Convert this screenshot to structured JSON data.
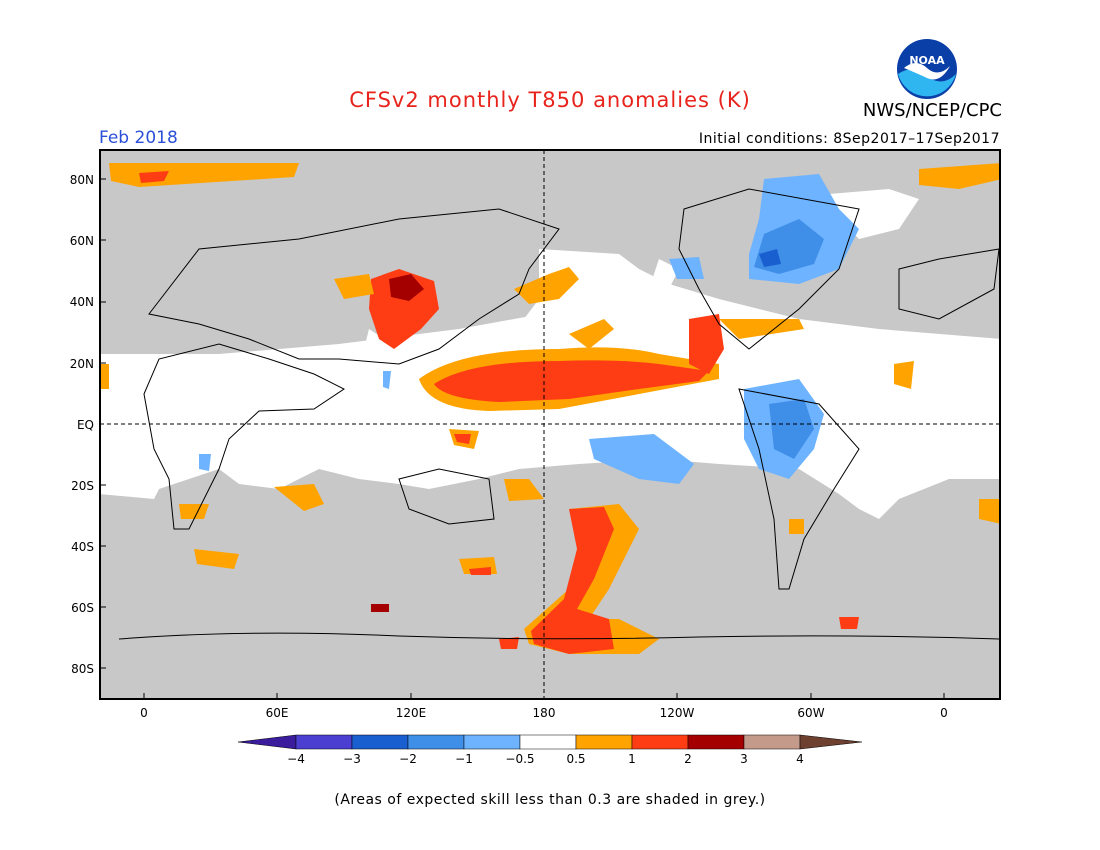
{
  "header": {
    "title": "CFSv2 monthly T850 anomalies (K)",
    "agency": "NWS/NCEP/CPC",
    "month": "Feb 2018",
    "initial_conditions": "Initial conditions: 8Sep2017–17Sep2017"
  },
  "logo": {
    "text": "NOAA",
    "icon": "noaa-logo-icon"
  },
  "map": {
    "lat_labels": [
      "80N",
      "60N",
      "40N",
      "20N",
      "EQ",
      "20S",
      "40S",
      "60S",
      "80S"
    ],
    "lon_labels": [
      "0",
      "60E",
      "120E",
      "180",
      "120W",
      "60W",
      "0"
    ],
    "colors": {
      "skill_grey": "#c8c8c8",
      "neutral": "#ffffff",
      "warm_0_5_1": "#ffa300",
      "warm_1_2": "#ff3d14",
      "warm_2_3": "#a50000",
      "cool_0_5_1": "#6db3ff",
      "cool_1_2": "#3f8ee8",
      "cool_2_3": "#1a5fd0"
    }
  },
  "colorbar": {
    "labels": [
      "−4",
      "−3",
      "−2",
      "−1",
      "−0.5",
      "0.5",
      "1",
      "2",
      "3",
      "4"
    ],
    "colors": [
      "#3b1c9c",
      "#4a3fd1",
      "#1a5fd0",
      "#3f8ee8",
      "#6db3ff",
      "#ffffff",
      "#ffa300",
      "#ff3d14",
      "#a50000",
      "#c49a8a",
      "#6e4030"
    ]
  },
  "footnote": "(Areas of expected skill less than 0.3 are shaded in grey.)"
}
